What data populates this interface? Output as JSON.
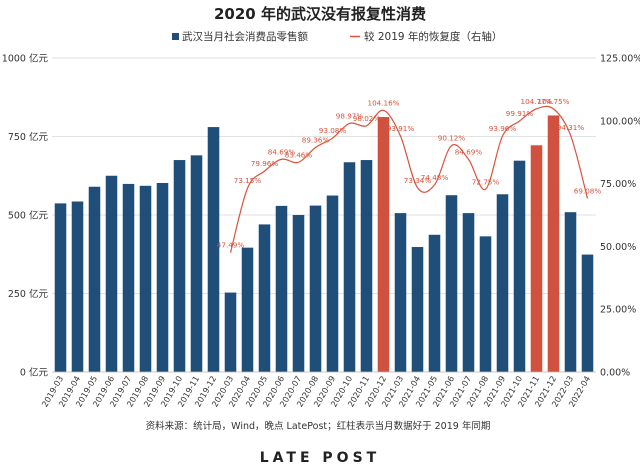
{
  "chart_data": {
    "type": "bar+line",
    "title": "2020 年的武汉没有报复性消费",
    "legend": {
      "bar_label": "武汉当月社会消费品零售额",
      "line_label": "较 2019 年的恢复度（右轴）",
      "placement": "top-center"
    },
    "source": "资料来源：统计局，Wind，晚点 LatePost；红柱表示当月数据好于 2019 年同期",
    "brand": "LATE POST",
    "colors": {
      "bar": "#1f4e79",
      "bar_highlight": "#d0513e",
      "line": "#d9533c",
      "grid": "#d9d9d9",
      "text": "#333333"
    },
    "categories": [
      "2019-03",
      "2019-04",
      "2019-05",
      "2019-06",
      "2019-07",
      "2019-08",
      "2019-09",
      "2019-10",
      "2019-11",
      "2019-12",
      "2020-03",
      "2020-04",
      "2020-05",
      "2020-06",
      "2020-07",
      "2020-08",
      "2020-09",
      "2020-10",
      "2020-11",
      "2020-12",
      "2021-03",
      "2021-04",
      "2021-05",
      "2021-06",
      "2021-07",
      "2021-08",
      "2021-09",
      "2021-10",
      "2021-11",
      "2021-12",
      "2022-03",
      "2022-04"
    ],
    "bar_values": [
      537,
      543,
      590,
      625,
      599,
      593,
      602,
      675,
      690,
      780,
      253,
      396,
      470,
      529,
      500,
      530,
      562,
      668,
      675,
      812,
      506,
      398,
      437,
      563,
      506,
      432,
      566,
      673,
      722,
      817,
      509,
      374
    ],
    "highlight": [
      false,
      false,
      false,
      false,
      false,
      false,
      false,
      false,
      false,
      false,
      false,
      false,
      false,
      false,
      false,
      false,
      false,
      false,
      false,
      true,
      false,
      false,
      false,
      false,
      false,
      false,
      false,
      false,
      true,
      true,
      false,
      false
    ],
    "recovery_values": [
      null,
      null,
      null,
      null,
      null,
      null,
      null,
      null,
      null,
      null,
      47.49,
      73.15,
      79.96,
      84.69,
      83.46,
      89.36,
      93.08,
      98.97,
      98.02,
      104.16,
      93.91,
      73.34,
      74.48,
      90.12,
      84.69,
      72.75,
      93.96,
      99.91,
      104.77,
      104.75,
      94.31,
      69.08
    ],
    "recovery_labels": [
      "",
      "",
      "",
      "",
      "",
      "",
      "",
      "",
      "",
      "",
      "47.49%",
      "73.15%",
      "79.96%",
      "84.69%",
      "83.46%",
      "89.36%",
      "93.08%",
      "98.97%",
      "98.02%",
      "104.16%",
      "93.91%",
      "73.34%",
      "74.48%",
      "90.12%",
      "84.69%",
      "72.75%",
      "93.96%",
      "99.91%",
      "104.77%",
      "104.75%",
      "94.31%",
      "69.08%"
    ],
    "left_axis": {
      "ticks": [
        "0 亿元",
        "250 亿元",
        "500 亿元",
        "750 亿元",
        "1000 亿元"
      ],
      "ylim": [
        0,
        1000
      ]
    },
    "right_axis": {
      "ticks": [
        "0.00%",
        "25.00%",
        "50.00%",
        "75.00%",
        "100.00%",
        "125.00%"
      ],
      "ylim": [
        0,
        125
      ]
    },
    "grid": true
  }
}
